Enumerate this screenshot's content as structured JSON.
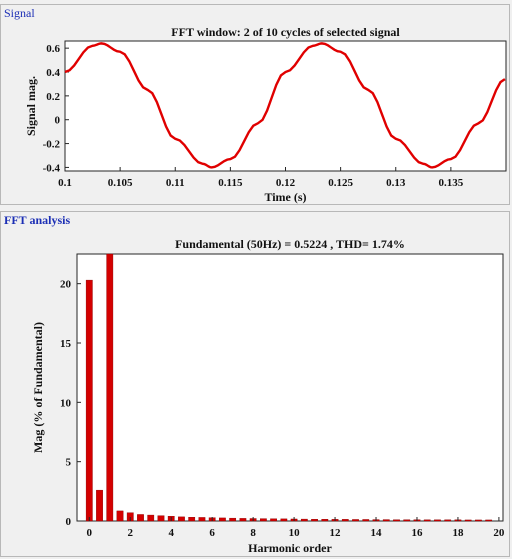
{
  "signal_panel": {
    "title": "Signal"
  },
  "fft_panel": {
    "title": "FFT analysis"
  },
  "chart_data": [
    {
      "type": "line",
      "title": "FFT window: 2 of 10 cycles of selected signal",
      "xlabel": "Time (s)",
      "ylabel": "Signal mag.",
      "xlim": [
        0.1,
        0.14
      ],
      "ylim": [
        -0.43,
        0.66
      ],
      "xticks": [
        "0.1",
        "0.105",
        "0.11",
        "0.115",
        "0.12",
        "0.125",
        "0.13",
        "0.135"
      ],
      "yticks": [
        "-0.4",
        "-0.2",
        "0",
        "0.2",
        "0.4",
        "0.6"
      ],
      "series": [
        {
          "color": "#e00000",
          "x": [
            0.1,
            0.1025,
            0.1033,
            0.105,
            0.1075,
            0.11,
            0.1125,
            0.1133,
            0.115,
            0.1175,
            0.12,
            0.1225,
            0.1233,
            0.125,
            0.1275,
            0.13,
            0.1325,
            0.1333,
            0.135,
            0.1375,
            0.1399
          ],
          "y": [
            0.4,
            0.62,
            0.64,
            0.57,
            0.25,
            -0.16,
            -0.37,
            -0.4,
            -0.33,
            -0.03,
            0.4,
            0.62,
            0.64,
            0.57,
            0.25,
            -0.16,
            -0.37,
            -0.4,
            -0.33,
            -0.03,
            0.34
          ]
        }
      ]
    },
    {
      "type": "bar",
      "title": "Fundamental (50Hz) = 0.5224 , THD= 1.74%",
      "xlabel": "Harmonic order",
      "ylabel": "Mag (% of Fundamental)",
      "xlim": [
        -0.6,
        20.2
      ],
      "ylim": [
        0,
        22.5
      ],
      "xticks": [
        "0",
        "2",
        "4",
        "6",
        "8",
        "10",
        "12",
        "14",
        "16",
        "18",
        "20"
      ],
      "yticks": [
        "0",
        "5",
        "10",
        "15",
        "20"
      ],
      "bar_color": "#d40000",
      "x": [
        0,
        0.5,
        1,
        1.5,
        2,
        2.5,
        3,
        3.5,
        4,
        4.5,
        5,
        5.5,
        6,
        6.5,
        7,
        7.5,
        8,
        8.5,
        9,
        9.5,
        10,
        10.5,
        11,
        11.5,
        12,
        12.5,
        13,
        13.5,
        14,
        14.5,
        15,
        15.5,
        16,
        16.5,
        17,
        17.5,
        18,
        18.5,
        19,
        19.5
      ],
      "values": [
        20.3,
        2.6,
        22.5,
        0.85,
        0.7,
        0.55,
        0.5,
        0.45,
        0.4,
        0.35,
        0.32,
        0.3,
        0.28,
        0.26,
        0.24,
        0.22,
        0.21,
        0.2,
        0.19,
        0.18,
        0.17,
        0.16,
        0.15,
        0.15,
        0.14,
        0.14,
        0.13,
        0.13,
        0.12,
        0.12,
        0.11,
        0.11,
        0.11,
        0.1,
        0.1,
        0.1,
        0.1,
        0.09,
        0.09,
        0.09
      ]
    }
  ]
}
